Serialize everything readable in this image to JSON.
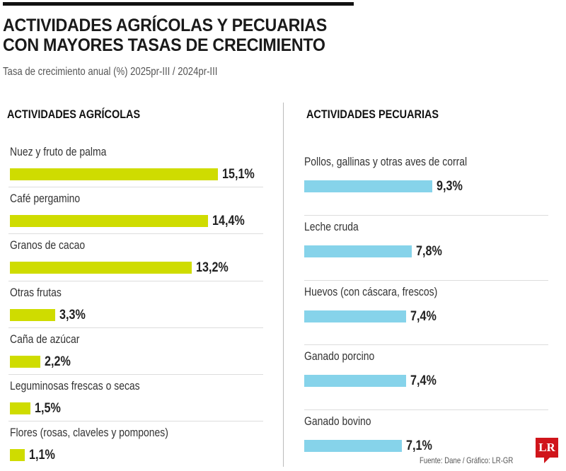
{
  "title_line1": "ACTIVIDADES AGRÍCOLAS Y PECUARIAS",
  "title_line2": "CON MAYORES TASAS DE CRECIMIENTO",
  "subtitle": "Tasa de crecimiento anual (%) 2025pr-III / 2024pr-III",
  "source": "Fuente: Dane / Gráfico: LR-GR",
  "logo": "LR",
  "chart_data": [
    {
      "type": "bar",
      "orientation": "horizontal",
      "title": "ACTIVIDADES AGRÍCOLAS",
      "color": "#cfdc00",
      "categories": [
        "Nuez y fruto de palma",
        "Café pergamino",
        "Granos de cacao",
        "Otras frutas",
        "Caña de azúcar",
        "Leguminosas frescas o secas",
        "Flores (rosas, claveles y pompones)"
      ],
      "values": [
        15.1,
        14.4,
        13.2,
        3.3,
        2.2,
        1.5,
        1.1
      ],
      "labels": [
        "15,1%",
        "14,4%",
        "13,2%",
        "3,3%",
        "2,2%",
        "1,5%",
        "1,1%"
      ]
    },
    {
      "type": "bar",
      "orientation": "horizontal",
      "title": "ACTIVIDADES PECUARIAS",
      "color": "#86d3ea",
      "categories": [
        "Pollos, gallinas y otras aves de corral",
        "Leche cruda",
        "Huevos (con cáscara, frescos)",
        "Ganado porcino",
        "Ganado bovino"
      ],
      "values": [
        9.3,
        7.8,
        7.4,
        7.4,
        7.1
      ],
      "labels": [
        "9,3%",
        "7,8%",
        "7,4%",
        "7,4%",
        "7,1%"
      ]
    }
  ]
}
